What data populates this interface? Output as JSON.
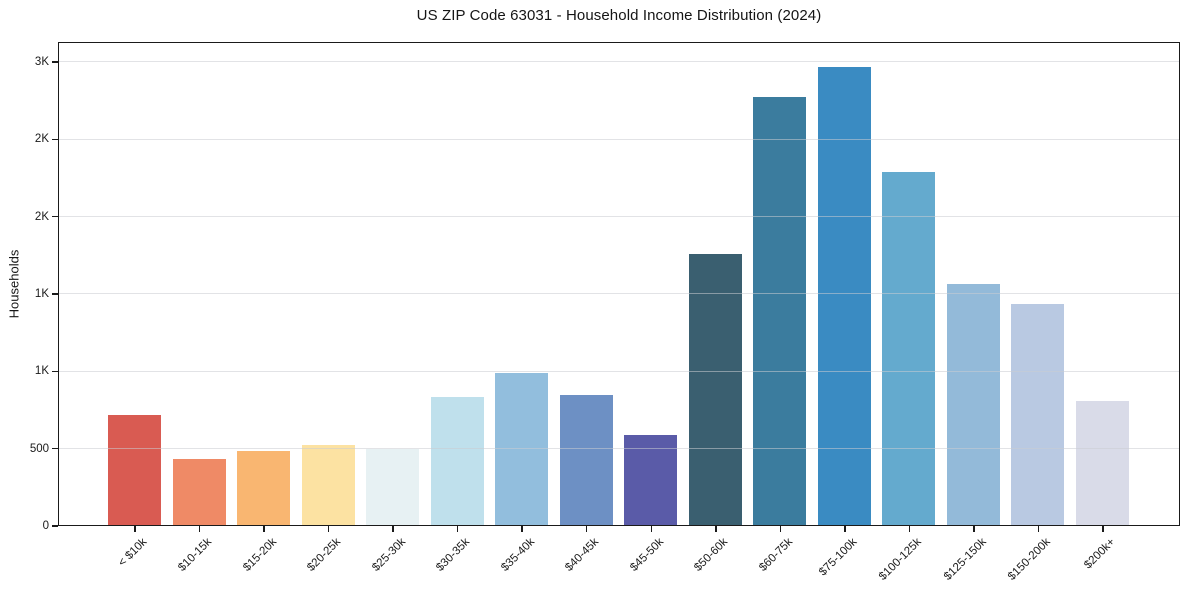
{
  "title": "US ZIP Code 63031 - Household Income Distribution (2024)",
  "chart_data": {
    "type": "bar",
    "title": "US ZIP Code 63031 - Household Income Distribution (2024)",
    "xlabel": "",
    "ylabel": "Households",
    "categories": [
      "< $10k",
      "$10-15k",
      "$15-20k",
      "$20-25k",
      "$25-30k",
      "$30-35k",
      "$35-40k",
      "$40-45k",
      "$45-50k",
      "$50-60k",
      "$60-75k",
      "$75-100k",
      "$100-125k",
      "$125-150k",
      "$150-200k",
      "$200k+"
    ],
    "values": [
      710,
      425,
      480,
      515,
      490,
      830,
      980,
      840,
      580,
      1750,
      2770,
      2960,
      2280,
      1560,
      1430,
      800
    ],
    "bar_colors": [
      "#d95b52",
      "#ef8a66",
      "#f9b671",
      "#fce2a2",
      "#e7f1f3",
      "#bfe0ec",
      "#92bedd",
      "#6d90c4",
      "#5a5ba8",
      "#3a5f70",
      "#3b7c9e",
      "#3a8bc2",
      "#64aace",
      "#93bad9",
      "#b9c9e2",
      "#d9dbe8"
    ],
    "y_ticks": [
      {
        "value": 0,
        "label": "0"
      },
      {
        "value": 500,
        "label": "500"
      },
      {
        "value": 1000,
        "label": "1K"
      },
      {
        "value": 1500,
        "label": "1K"
      },
      {
        "value": 2000,
        "label": "2K"
      },
      {
        "value": 2500,
        "label": "2K"
      },
      {
        "value": 3000,
        "label": "3K"
      }
    ],
    "ylim": [
      0,
      3129
    ],
    "grid": "horizontal",
    "legend": "none"
  },
  "colors": {
    "spine": "#1a1a1a",
    "grid": "#caccd2",
    "text": "#1a1a1a",
    "background": "#ffffff"
  }
}
